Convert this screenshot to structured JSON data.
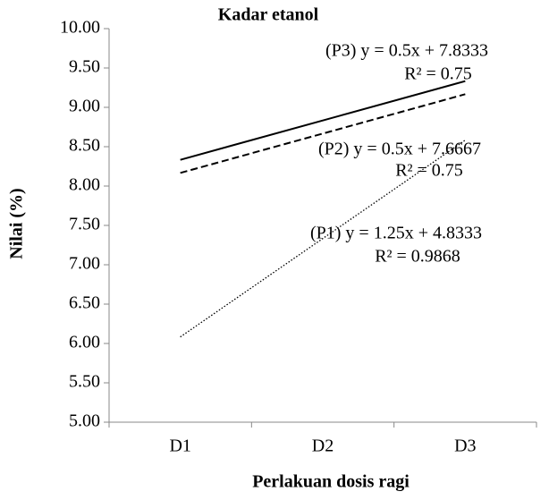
{
  "chart_data": {
    "type": "line",
    "title": "Kadar etanol",
    "x_label": "Perlakuan dosis ragi",
    "y_label": "Nilai (%)",
    "categories": [
      "D1",
      "D2",
      "D3"
    ],
    "series": [
      {
        "style": "solid",
        "color": "#000000",
        "values": [
          8.3333,
          8.8333,
          9.3333
        ]
      },
      {
        "style": "dashed",
        "color": "#000000",
        "values": [
          8.1667,
          8.6667,
          9.1667
        ]
      },
      {
        "style": "dotted",
        "color": "#000000",
        "values": [
          6.0833,
          7.3333,
          8.5833
        ]
      }
    ],
    "annotations": [
      [
        "(P3) y = 0.5x + 7.8333",
        "R² = 0.75"
      ],
      [
        "(P2) y = 0.5x + 7.6667",
        "R² = 0.75"
      ],
      [
        "(P1) y = 1.25x + 4.8333",
        "R² = 0.9868"
      ]
    ],
    "ylim": [
      5,
      10
    ],
    "yticks": [
      {
        "value": 5,
        "label": "5.00"
      },
      {
        "value": 5.5,
        "label": "5.50"
      },
      {
        "value": 6,
        "label": "6.00"
      },
      {
        "value": 6.5,
        "label": "6.50"
      },
      {
        "value": 7,
        "label": "7.00"
      },
      {
        "value": 7.5,
        "label": "7.50"
      },
      {
        "value": 8,
        "label": "8.00"
      },
      {
        "value": 8.5,
        "label": "8.50"
      },
      {
        "value": 9,
        "label": "9.00"
      },
      {
        "value": 9.5,
        "label": "9.50"
      },
      {
        "value": 10,
        "label": "10.00"
      }
    ],
    "grid": false
  }
}
